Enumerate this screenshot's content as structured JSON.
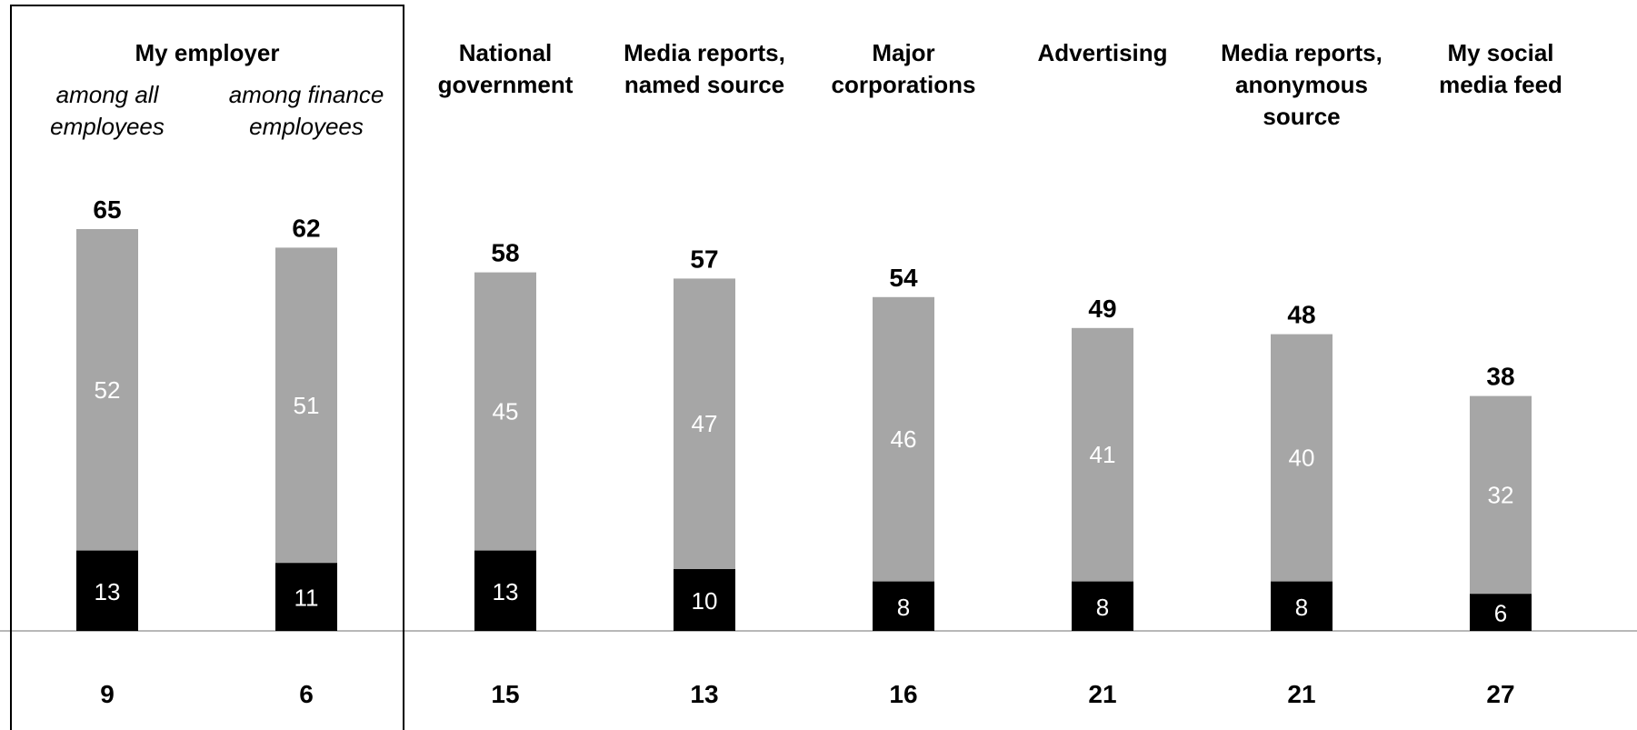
{
  "colors": {
    "top_segment": "#a6a6a6",
    "base_segment": "#000000",
    "baseline": "#a0a0a0",
    "highlight_border": "#000000"
  },
  "chart_data": {
    "type": "bar",
    "stacked": true,
    "ylim": [
      0,
      70
    ],
    "group_label": "My employer",
    "categories": [
      [
        "among all",
        "employees"
      ],
      [
        "among finance",
        "employees"
      ],
      [
        "National",
        "government"
      ],
      [
        "Media reports,",
        "named source"
      ],
      [
        "Major",
        "corporations"
      ],
      [
        "Advertising"
      ],
      [
        "Media reports,",
        "anonymous",
        "source"
      ],
      [
        "My social",
        "media feed"
      ]
    ],
    "series": [
      {
        "values": [
          13,
          11,
          13,
          10,
          8,
          8,
          8,
          6
        ]
      },
      {
        "values": [
          52,
          51,
          45,
          47,
          46,
          41,
          40,
          32
        ]
      }
    ],
    "totals": [
      65,
      62,
      58,
      57,
      54,
      49,
      48,
      38
    ],
    "bottom_values": [
      9,
      6,
      15,
      13,
      16,
      21,
      21,
      27
    ],
    "highlight_box": "My employer",
    "grid": false,
    "legend": "none"
  }
}
